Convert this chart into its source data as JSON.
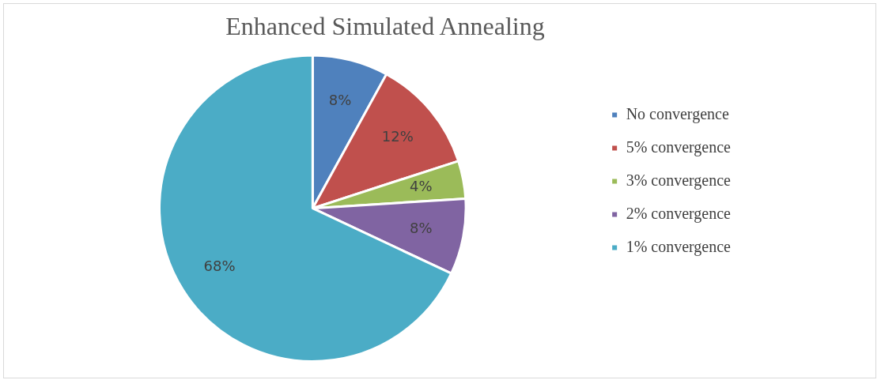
{
  "chart_data": {
    "type": "pie",
    "title": "Enhanced Simulated Annealing",
    "categories": [
      "No convergence",
      "5% convergence",
      "3% convergence",
      "2% convergence",
      "1% convergence"
    ],
    "values": [
      8,
      12,
      4,
      8,
      68
    ],
    "colors": [
      "#4f81bd",
      "#c0504d",
      "#9bbb59",
      "#8064a2",
      "#4bacc6"
    ],
    "value_labels": [
      "8%",
      "12%",
      "4%",
      "8%",
      "68%"
    ],
    "legend": "right"
  }
}
